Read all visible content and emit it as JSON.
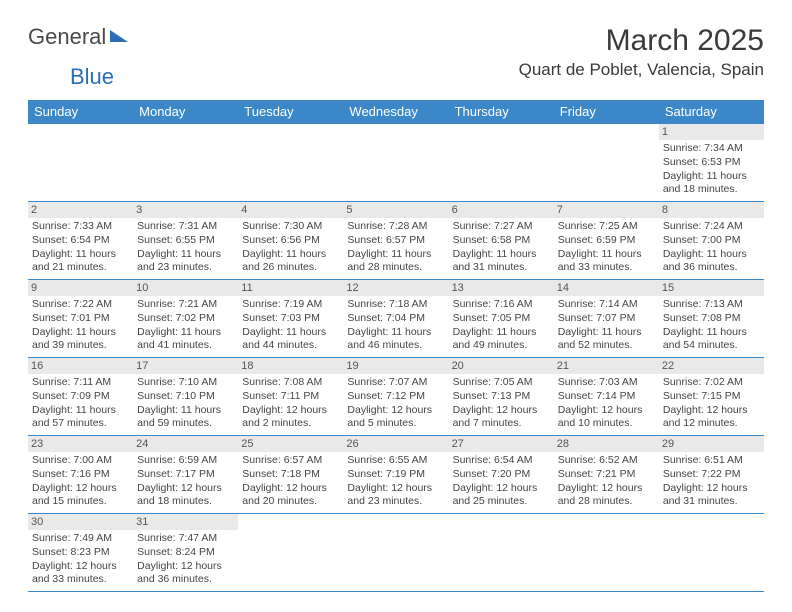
{
  "logo": {
    "text1": "General",
    "text2": "Blue"
  },
  "title": "March 2025",
  "location": "Quart de Poblet, Valencia, Spain",
  "colors": {
    "header_bg": "#3b87c8",
    "header_text": "#ffffff",
    "border": "#3b87c8",
    "daynum_bg": "#e9e9e9",
    "text": "#454545",
    "logo_blue": "#2a6fb5"
  },
  "weekdays": [
    "Sunday",
    "Monday",
    "Tuesday",
    "Wednesday",
    "Thursday",
    "Friday",
    "Saturday"
  ],
  "days": [
    {
      "n": 1,
      "sr": "7:34 AM",
      "ss": "6:53 PM",
      "dl": "11 hours and 18 minutes."
    },
    {
      "n": 2,
      "sr": "7:33 AM",
      "ss": "6:54 PM",
      "dl": "11 hours and 21 minutes."
    },
    {
      "n": 3,
      "sr": "7:31 AM",
      "ss": "6:55 PM",
      "dl": "11 hours and 23 minutes."
    },
    {
      "n": 4,
      "sr": "7:30 AM",
      "ss": "6:56 PM",
      "dl": "11 hours and 26 minutes."
    },
    {
      "n": 5,
      "sr": "7:28 AM",
      "ss": "6:57 PM",
      "dl": "11 hours and 28 minutes."
    },
    {
      "n": 6,
      "sr": "7:27 AM",
      "ss": "6:58 PM",
      "dl": "11 hours and 31 minutes."
    },
    {
      "n": 7,
      "sr": "7:25 AM",
      "ss": "6:59 PM",
      "dl": "11 hours and 33 minutes."
    },
    {
      "n": 8,
      "sr": "7:24 AM",
      "ss": "7:00 PM",
      "dl": "11 hours and 36 minutes."
    },
    {
      "n": 9,
      "sr": "7:22 AM",
      "ss": "7:01 PM",
      "dl": "11 hours and 39 minutes."
    },
    {
      "n": 10,
      "sr": "7:21 AM",
      "ss": "7:02 PM",
      "dl": "11 hours and 41 minutes."
    },
    {
      "n": 11,
      "sr": "7:19 AM",
      "ss": "7:03 PM",
      "dl": "11 hours and 44 minutes."
    },
    {
      "n": 12,
      "sr": "7:18 AM",
      "ss": "7:04 PM",
      "dl": "11 hours and 46 minutes."
    },
    {
      "n": 13,
      "sr": "7:16 AM",
      "ss": "7:05 PM",
      "dl": "11 hours and 49 minutes."
    },
    {
      "n": 14,
      "sr": "7:14 AM",
      "ss": "7:07 PM",
      "dl": "11 hours and 52 minutes."
    },
    {
      "n": 15,
      "sr": "7:13 AM",
      "ss": "7:08 PM",
      "dl": "11 hours and 54 minutes."
    },
    {
      "n": 16,
      "sr": "7:11 AM",
      "ss": "7:09 PM",
      "dl": "11 hours and 57 minutes."
    },
    {
      "n": 17,
      "sr": "7:10 AM",
      "ss": "7:10 PM",
      "dl": "11 hours and 59 minutes."
    },
    {
      "n": 18,
      "sr": "7:08 AM",
      "ss": "7:11 PM",
      "dl": "12 hours and 2 minutes."
    },
    {
      "n": 19,
      "sr": "7:07 AM",
      "ss": "7:12 PM",
      "dl": "12 hours and 5 minutes."
    },
    {
      "n": 20,
      "sr": "7:05 AM",
      "ss": "7:13 PM",
      "dl": "12 hours and 7 minutes."
    },
    {
      "n": 21,
      "sr": "7:03 AM",
      "ss": "7:14 PM",
      "dl": "12 hours and 10 minutes."
    },
    {
      "n": 22,
      "sr": "7:02 AM",
      "ss": "7:15 PM",
      "dl": "12 hours and 12 minutes."
    },
    {
      "n": 23,
      "sr": "7:00 AM",
      "ss": "7:16 PM",
      "dl": "12 hours and 15 minutes."
    },
    {
      "n": 24,
      "sr": "6:59 AM",
      "ss": "7:17 PM",
      "dl": "12 hours and 18 minutes."
    },
    {
      "n": 25,
      "sr": "6:57 AM",
      "ss": "7:18 PM",
      "dl": "12 hours and 20 minutes."
    },
    {
      "n": 26,
      "sr": "6:55 AM",
      "ss": "7:19 PM",
      "dl": "12 hours and 23 minutes."
    },
    {
      "n": 27,
      "sr": "6:54 AM",
      "ss": "7:20 PM",
      "dl": "12 hours and 25 minutes."
    },
    {
      "n": 28,
      "sr": "6:52 AM",
      "ss": "7:21 PM",
      "dl": "12 hours and 28 minutes."
    },
    {
      "n": 29,
      "sr": "6:51 AM",
      "ss": "7:22 PM",
      "dl": "12 hours and 31 minutes."
    },
    {
      "n": 30,
      "sr": "7:49 AM",
      "ss": "8:23 PM",
      "dl": "12 hours and 33 minutes."
    },
    {
      "n": 31,
      "sr": "7:47 AM",
      "ss": "8:24 PM",
      "dl": "12 hours and 36 minutes."
    }
  ],
  "labels": {
    "sunrise": "Sunrise:",
    "sunset": "Sunset:",
    "daylight": "Daylight:"
  },
  "layout": {
    "first_day_column": 6,
    "total_days": 31,
    "columns": 7
  }
}
